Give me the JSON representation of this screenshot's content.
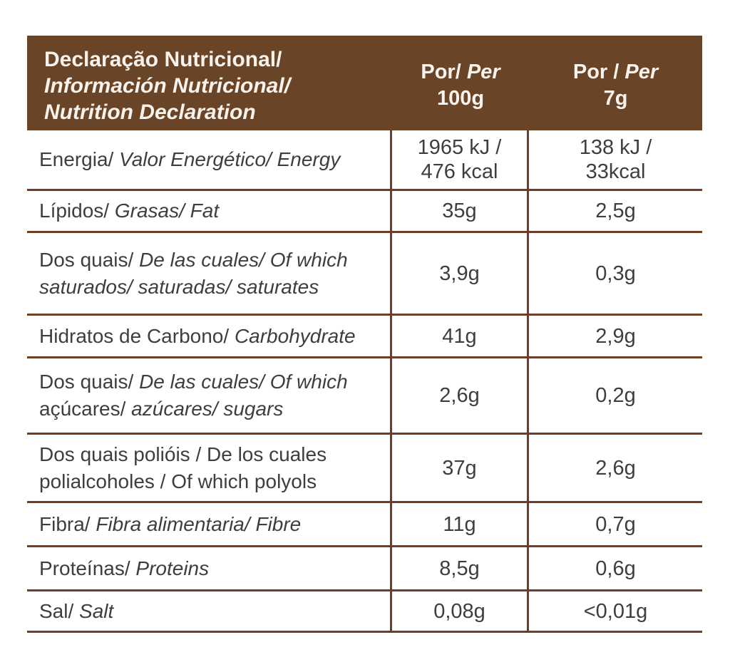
{
  "colors": {
    "header_bg": "#6a4426",
    "grid_line": "#713d24",
    "body_text": "#3e3e40",
    "header_text": "#f7f2ec",
    "page_bg": "#ffffff"
  },
  "table": {
    "header": {
      "title_lines": [
        {
          "text": "Declaração Nutricional/",
          "italic": false
        },
        {
          "text": "Información Nutricional/",
          "italic": true
        },
        {
          "text": "Nutrition Declaration",
          "italic": true
        }
      ],
      "col_per_100g": {
        "line1_regular": "Por/ ",
        "line1_italic": "Per",
        "line2": "100g"
      },
      "col_per_7g": {
        "line1_regular": "Por / ",
        "line1_italic": "Per",
        "line2": "7g"
      }
    },
    "rows": [
      {
        "label_segments": [
          {
            "text": "Energia/ ",
            "italic": false
          },
          {
            "text": "Valor Energético/ Energy",
            "italic": true
          }
        ],
        "per_100g_lines": [
          "1965 kJ /",
          "476 kcal"
        ],
        "per_7g_lines": [
          "138 kJ /",
          "33kcal"
        ]
      },
      {
        "label_segments": [
          {
            "text": "Lípidos/ ",
            "italic": false
          },
          {
            "text": "Grasas/ Fat",
            "italic": true
          }
        ],
        "per_100g_lines": [
          "35g"
        ],
        "per_7g_lines": [
          "2,5g"
        ]
      },
      {
        "label_segments": [
          {
            "text": "Dos quais/ ",
            "italic": false
          },
          {
            "text": "De las cuales/ Of which saturados/ saturadas/ saturates",
            "italic": true
          }
        ],
        "per_100g_lines": [
          "3,9g"
        ],
        "per_7g_lines": [
          "0,3g"
        ]
      },
      {
        "label_segments": [
          {
            "text": "Hidratos de Carbono/ ",
            "italic": false
          },
          {
            "text": "Carbohydrate",
            "italic": true
          }
        ],
        "per_100g_lines": [
          "41g"
        ],
        "per_7g_lines": [
          "2,9g"
        ]
      },
      {
        "label_segments": [
          {
            "text": "Dos quais/ ",
            "italic": false
          },
          {
            "text": "De las cuales/ Of which ",
            "italic": true
          },
          {
            "text": "açúcares/ ",
            "italic": false
          },
          {
            "text": "azúcares/ sugars",
            "italic": true
          }
        ],
        "per_100g_lines": [
          "2,6g"
        ],
        "per_7g_lines": [
          "0,2g"
        ]
      },
      {
        "label_segments": [
          {
            "text": "Dos quais polióis / De los cuales polialcoholes / Of which polyols",
            "italic": false
          }
        ],
        "per_100g_lines": [
          "37g"
        ],
        "per_7g_lines": [
          "2,6g"
        ]
      },
      {
        "label_segments": [
          {
            "text": "Fibra/ ",
            "italic": false
          },
          {
            "text": "Fibra alimentaria/ Fibre",
            "italic": true
          }
        ],
        "per_100g_lines": [
          "11g"
        ],
        "per_7g_lines": [
          "0,7g"
        ]
      },
      {
        "label_segments": [
          {
            "text": "Proteínas/ ",
            "italic": false
          },
          {
            "text": "Proteins",
            "italic": true
          }
        ],
        "per_100g_lines": [
          "8,5g"
        ],
        "per_7g_lines": [
          "0,6g"
        ]
      },
      {
        "label_segments": [
          {
            "text": "Sal/ ",
            "italic": false
          },
          {
            "text": "Salt",
            "italic": true
          }
        ],
        "per_100g_lines": [
          "0,08g"
        ],
        "per_7g_lines": [
          "<0,01g"
        ]
      }
    ]
  }
}
